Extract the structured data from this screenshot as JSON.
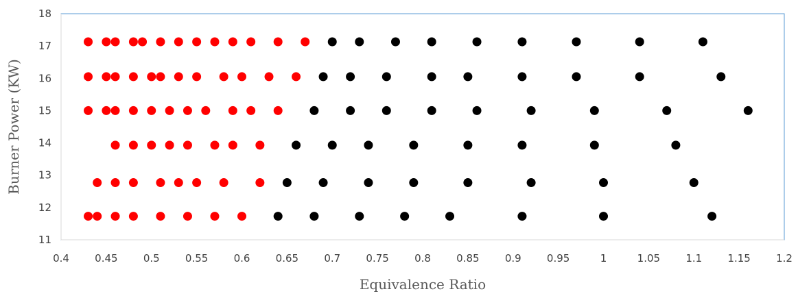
{
  "chart_data": {
    "type": "scatter",
    "xlabel": "Equivalence Ratio",
    "ylabel": "Burner Power (KW)",
    "xlim": [
      0.4,
      1.2
    ],
    "ylim": [
      11,
      18
    ],
    "x_ticks": [
      "0.4",
      "0.45",
      "0.5",
      "0.55",
      "0.6",
      "0.65",
      "0.7",
      "0.75",
      "0.8",
      "0.85",
      "0.9",
      "0.95",
      "1",
      "1.05",
      "1.1",
      "1.15",
      "1.2"
    ],
    "y_ticks": [
      "11",
      "12",
      "13",
      "14",
      "15",
      "16",
      "17",
      "18"
    ],
    "grid": false,
    "plot_border_color": "#5B9BD5",
    "series": [
      {
        "color": "#FF0000",
        "points": [
          [
            0.43,
            17.13
          ],
          [
            0.45,
            17.13
          ],
          [
            0.46,
            17.13
          ],
          [
            0.48,
            17.13
          ],
          [
            0.49,
            17.13
          ],
          [
            0.51,
            17.13
          ],
          [
            0.53,
            17.13
          ],
          [
            0.55,
            17.13
          ],
          [
            0.57,
            17.13
          ],
          [
            0.59,
            17.13
          ],
          [
            0.61,
            17.13
          ],
          [
            0.64,
            17.13
          ],
          [
            0.67,
            17.13
          ],
          [
            0.43,
            16.05
          ],
          [
            0.45,
            16.05
          ],
          [
            0.46,
            16.05
          ],
          [
            0.48,
            16.05
          ],
          [
            0.5,
            16.05
          ],
          [
            0.51,
            16.05
          ],
          [
            0.53,
            16.05
          ],
          [
            0.55,
            16.05
          ],
          [
            0.58,
            16.05
          ],
          [
            0.6,
            16.05
          ],
          [
            0.63,
            16.05
          ],
          [
            0.66,
            16.05
          ],
          [
            0.43,
            15.0
          ],
          [
            0.45,
            15.0
          ],
          [
            0.46,
            15.0
          ],
          [
            0.48,
            15.0
          ],
          [
            0.5,
            15.0
          ],
          [
            0.52,
            15.0
          ],
          [
            0.54,
            15.0
          ],
          [
            0.56,
            15.0
          ],
          [
            0.59,
            15.0
          ],
          [
            0.61,
            15.0
          ],
          [
            0.64,
            15.0
          ],
          [
            0.46,
            13.93
          ],
          [
            0.48,
            13.93
          ],
          [
            0.5,
            13.93
          ],
          [
            0.52,
            13.93
          ],
          [
            0.54,
            13.93
          ],
          [
            0.57,
            13.93
          ],
          [
            0.59,
            13.93
          ],
          [
            0.62,
            13.93
          ],
          [
            0.44,
            12.77
          ],
          [
            0.46,
            12.77
          ],
          [
            0.48,
            12.77
          ],
          [
            0.51,
            12.77
          ],
          [
            0.53,
            12.77
          ],
          [
            0.55,
            12.77
          ],
          [
            0.58,
            12.77
          ],
          [
            0.62,
            12.77
          ],
          [
            0.43,
            11.73
          ],
          [
            0.44,
            11.73
          ],
          [
            0.46,
            11.73
          ],
          [
            0.48,
            11.73
          ],
          [
            0.51,
            11.73
          ],
          [
            0.54,
            11.73
          ],
          [
            0.57,
            11.73
          ],
          [
            0.6,
            11.73
          ]
        ]
      },
      {
        "color": "#000000",
        "points": [
          [
            0.7,
            17.13
          ],
          [
            0.73,
            17.13
          ],
          [
            0.77,
            17.13
          ],
          [
            0.81,
            17.13
          ],
          [
            0.86,
            17.13
          ],
          [
            0.91,
            17.13
          ],
          [
            0.97,
            17.13
          ],
          [
            1.04,
            17.13
          ],
          [
            1.11,
            17.13
          ],
          [
            0.69,
            16.05
          ],
          [
            0.72,
            16.05
          ],
          [
            0.76,
            16.05
          ],
          [
            0.81,
            16.05
          ],
          [
            0.85,
            16.05
          ],
          [
            0.91,
            16.05
          ],
          [
            0.97,
            16.05
          ],
          [
            1.04,
            16.05
          ],
          [
            1.13,
            16.05
          ],
          [
            0.68,
            15.0
          ],
          [
            0.72,
            15.0
          ],
          [
            0.76,
            15.0
          ],
          [
            0.81,
            15.0
          ],
          [
            0.86,
            15.0
          ],
          [
            0.92,
            15.0
          ],
          [
            0.99,
            15.0
          ],
          [
            1.07,
            15.0
          ],
          [
            1.16,
            15.0
          ],
          [
            0.66,
            13.93
          ],
          [
            0.7,
            13.93
          ],
          [
            0.74,
            13.93
          ],
          [
            0.79,
            13.93
          ],
          [
            0.85,
            13.93
          ],
          [
            0.91,
            13.93
          ],
          [
            0.99,
            13.93
          ],
          [
            1.08,
            13.93
          ],
          [
            0.65,
            12.77
          ],
          [
            0.69,
            12.77
          ],
          [
            0.74,
            12.77
          ],
          [
            0.79,
            12.77
          ],
          [
            0.85,
            12.77
          ],
          [
            0.92,
            12.77
          ],
          [
            1.0,
            12.77
          ],
          [
            1.1,
            12.77
          ],
          [
            0.64,
            11.73
          ],
          [
            0.68,
            11.73
          ],
          [
            0.73,
            11.73
          ],
          [
            0.78,
            11.73
          ],
          [
            0.83,
            11.73
          ],
          [
            0.91,
            11.73
          ],
          [
            1.0,
            11.73
          ],
          [
            1.12,
            11.73
          ]
        ]
      }
    ]
  }
}
